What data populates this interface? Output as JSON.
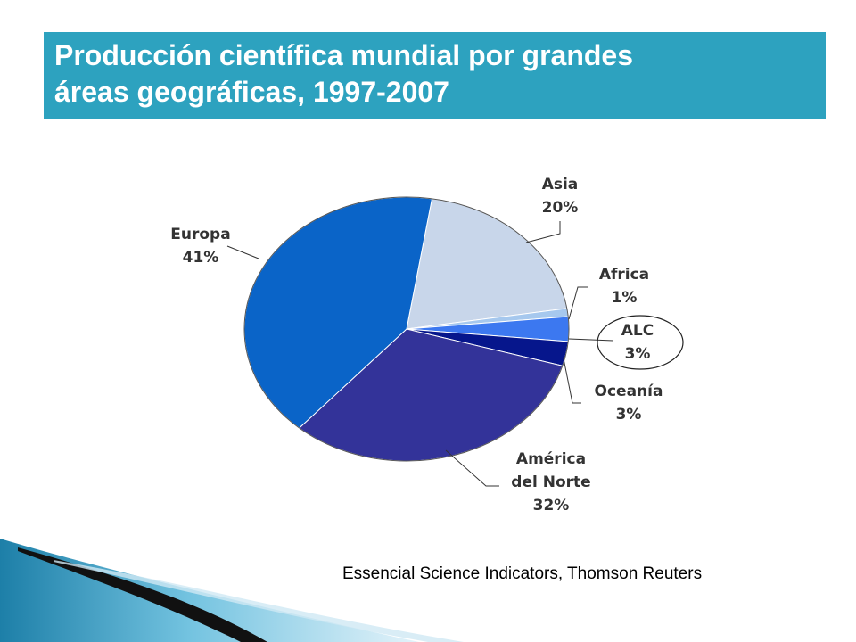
{
  "slide": {
    "title_line1": "Producción científica mundial por grandes",
    "title_line2": "áreas geográficas, 1997-2007",
    "source": "Essencial Science Indicators, Thomson Reuters",
    "accent_color": "#2da2bf"
  },
  "chart_data": {
    "type": "pie",
    "title": "Producción científica mundial por grandes áreas geográficas, 1997-2007",
    "unit": "%",
    "slices": [
      {
        "name": "Europa",
        "label_lines": [
          "Europa"
        ],
        "value": 41,
        "value_label": "41%",
        "color": "#0a64c8"
      },
      {
        "name": "Asia",
        "label_lines": [
          "Asia"
        ],
        "value": 20,
        "value_label": "20%",
        "color": "#c8d6ea"
      },
      {
        "name": "Africa",
        "label_lines": [
          "Africa"
        ],
        "value": 1,
        "value_label": "1%",
        "color": "#a6c8ee"
      },
      {
        "name": "ALC",
        "label_lines": [
          "ALC"
        ],
        "value": 3,
        "value_label": "3%",
        "color": "#3c78f0",
        "highlighted": true
      },
      {
        "name": "Oceanía",
        "label_lines": [
          "Oceanía"
        ],
        "value": 3,
        "value_label": "3%",
        "color": "#06168c"
      },
      {
        "name": "América del Norte",
        "label_lines": [
          "América",
          "del Norte"
        ],
        "value": 32,
        "value_label": "32%",
        "color": "#333399"
      }
    ]
  }
}
